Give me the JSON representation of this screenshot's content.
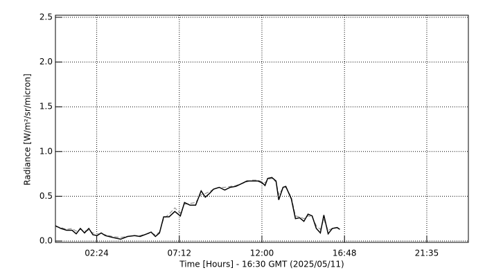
{
  "chart_data": {
    "type": "line",
    "xlabel": "Time [Hours] - 16:30 GMT  (2025/05/11)",
    "ylabel": "Radiance [W/m²/sr/micron]",
    "x": [
      0.0,
      0.32,
      0.65,
      0.97,
      1.21,
      1.45,
      1.69,
      1.94,
      2.18,
      2.42,
      2.66,
      2.9,
      3.31,
      3.79,
      4.19,
      4.6,
      4.92,
      5.32,
      5.56,
      5.81,
      6.05,
      6.29,
      6.61,
      6.94,
      7.26,
      7.5,
      7.82,
      8.15,
      8.47,
      8.71,
      8.95,
      9.19,
      9.52,
      9.84,
      10.16,
      10.48,
      10.81,
      11.13,
      11.45,
      11.77,
      12.02,
      12.18,
      12.34,
      12.58,
      12.82,
      12.98,
      13.23,
      13.39,
      13.71,
      13.95,
      14.19,
      14.44,
      14.68,
      14.92,
      15.16,
      15.4,
      15.6,
      15.85,
      16.09,
      16.37,
      16.53
    ],
    "series": [
      {
        "color": "#000000",
        "dash": false,
        "values": [
          0.17,
          0.14,
          0.12,
          0.12,
          0.08,
          0.14,
          0.09,
          0.14,
          0.07,
          0.06,
          0.09,
          0.06,
          0.04,
          0.02,
          0.05,
          0.06,
          0.05,
          0.08,
          0.1,
          0.05,
          0.09,
          0.27,
          0.27,
          0.33,
          0.28,
          0.43,
          0.4,
          0.4,
          0.56,
          0.49,
          0.53,
          0.58,
          0.6,
          0.57,
          0.6,
          0.61,
          0.64,
          0.67,
          0.67,
          0.67,
          0.65,
          0.62,
          0.7,
          0.71,
          0.67,
          0.46,
          0.6,
          0.61,
          0.47,
          0.25,
          0.26,
          0.22,
          0.3,
          0.28,
          0.14,
          0.09,
          0.29,
          0.08,
          0.14,
          0.15,
          0.13
        ]
      },
      {
        "color": "#808080",
        "dash": true,
        "values": [
          0.16,
          0.15,
          0.13,
          0.14,
          0.11,
          0.13,
          0.11,
          0.12,
          0.09,
          0.08,
          0.08,
          0.07,
          0.05,
          0.04,
          0.05,
          0.06,
          0.06,
          0.08,
          0.09,
          0.07,
          0.1,
          0.25,
          0.3,
          0.37,
          0.31,
          0.41,
          0.42,
          0.43,
          0.52,
          0.53,
          0.55,
          0.58,
          0.6,
          0.6,
          0.61,
          0.62,
          0.64,
          0.66,
          0.68,
          0.68,
          0.66,
          0.65,
          0.69,
          0.7,
          0.66,
          0.52,
          0.59,
          0.6,
          0.49,
          0.28,
          0.27,
          0.25,
          0.28,
          0.27,
          0.17,
          0.13,
          0.24,
          0.12,
          0.14,
          0.15,
          0.14
        ]
      }
    ],
    "xlim": [
      0,
      24
    ],
    "xticks": [
      {
        "value": 2.4,
        "label": "02:24"
      },
      {
        "value": 7.2,
        "label": "07:12"
      },
      {
        "value": 12,
        "label": "12:00"
      },
      {
        "value": 16.8,
        "label": "16:48"
      },
      {
        "value": 21.583,
        "label": "21:35"
      }
    ],
    "ylim": [
      0,
      2.5
    ],
    "yticks": [
      {
        "value": 0,
        "label": "0.0"
      },
      0.5,
      {
        "value": 1,
        "label": "1.0"
      },
      1.5,
      {
        "value": 2,
        "label": "2.0"
      },
      2.5
    ],
    "grid": true
  }
}
